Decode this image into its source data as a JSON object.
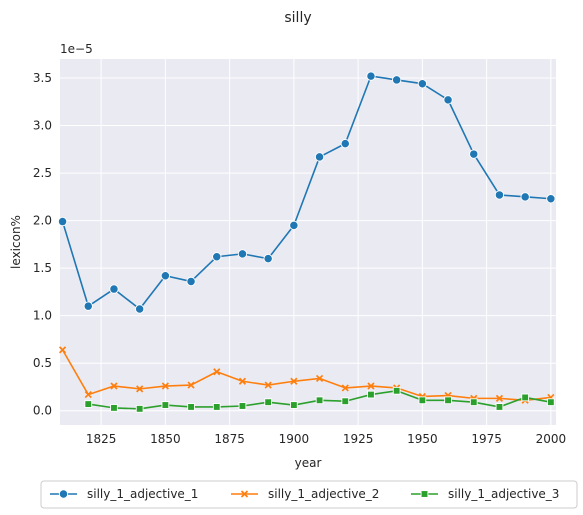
{
  "chart_data": {
    "type": "line",
    "title": "silly",
    "xlabel": "year",
    "ylabel": "lexicon%",
    "y_offset_text": "1e−5",
    "xlim": [
      1809,
      2002
    ],
    "ylim": [
      -0.15,
      3.7
    ],
    "x_ticks": [
      1825,
      1850,
      1875,
      1900,
      1925,
      1950,
      1975,
      2000
    ],
    "y_ticks": [
      0.0,
      0.5,
      1.0,
      1.5,
      2.0,
      2.5,
      3.0,
      3.5
    ],
    "y_tick_labels": [
      "0.0",
      "0.5",
      "1.0",
      "1.5",
      "2.0",
      "2.5",
      "3.0",
      "3.5"
    ],
    "grid": true,
    "legend_position": "bottom-center",
    "x": [
      1810,
      1820,
      1830,
      1840,
      1850,
      1860,
      1870,
      1880,
      1890,
      1900,
      1910,
      1920,
      1930,
      1940,
      1950,
      1960,
      1970,
      1980,
      1990,
      2000
    ],
    "series": [
      {
        "name": "silly_1_adjective_1",
        "color": "#1f77b4",
        "marker": "circle",
        "x": [
          1810,
          1820,
          1830,
          1840,
          1850,
          1860,
          1870,
          1880,
          1890,
          1900,
          1910,
          1920,
          1930,
          1940,
          1950,
          1960,
          1970,
          1980,
          1990,
          2000
        ],
        "values": [
          1.99,
          1.1,
          1.28,
          1.07,
          1.42,
          1.36,
          1.62,
          1.65,
          1.6,
          1.95,
          2.67,
          2.81,
          3.52,
          3.48,
          3.44,
          3.27,
          2.7,
          2.27,
          2.25,
          2.23
        ]
      },
      {
        "name": "silly_1_adjective_2",
        "color": "#ff7f0e",
        "marker": "x",
        "x": [
          1810,
          1820,
          1830,
          1840,
          1850,
          1860,
          1870,
          1880,
          1890,
          1900,
          1910,
          1920,
          1930,
          1940,
          1950,
          1960,
          1970,
          1980,
          1990,
          2000
        ],
        "values": [
          0.64,
          0.17,
          0.26,
          0.23,
          0.26,
          0.27,
          0.41,
          0.31,
          0.27,
          0.31,
          0.34,
          0.24,
          0.26,
          0.24,
          0.15,
          0.16,
          0.13,
          0.13,
          0.11,
          0.14
        ]
      },
      {
        "name": "silly_1_adjective_3",
        "color": "#2ca02c",
        "marker": "square",
        "x": [
          1820,
          1830,
          1840,
          1850,
          1860,
          1870,
          1880,
          1890,
          1900,
          1910,
          1920,
          1930,
          1940,
          1950,
          1960,
          1970,
          1980,
          1990,
          2000
        ],
        "values": [
          0.07,
          0.03,
          0.02,
          0.06,
          0.04,
          0.04,
          0.05,
          0.09,
          0.06,
          0.11,
          0.1,
          0.17,
          0.21,
          0.11,
          0.11,
          0.09,
          0.04,
          0.14,
          0.09
        ]
      }
    ]
  }
}
